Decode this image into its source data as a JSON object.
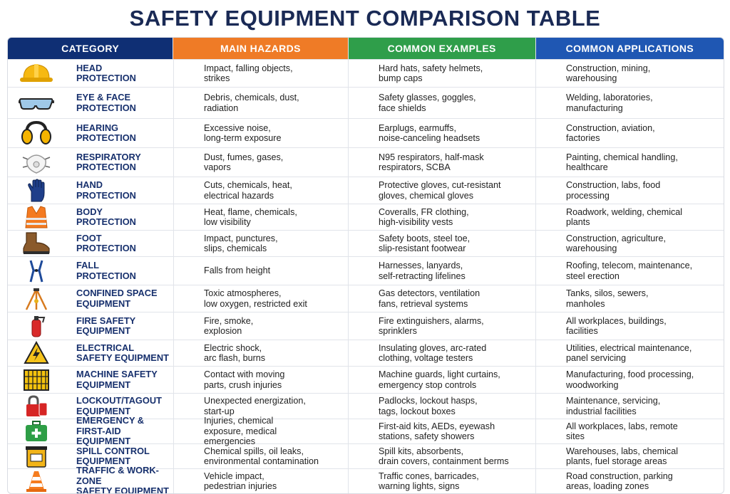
{
  "title": "SAFETY EQUIPMENT COMPARISON TABLE",
  "headers": {
    "category": "CATEGORY",
    "hazards": "MAIN HAZARDS",
    "examples": "COMMON EXAMPLES",
    "applications": "COMMON APPLICATIONS"
  },
  "header_colors": [
    "#0f2f74",
    "#ef7b26",
    "#2f9e4a",
    "#1f57b3"
  ],
  "rows": [
    {
      "icon": "hard-hat-icon",
      "category": "HEAD\nPROTECTION",
      "hazards": "Impact, falling objects,\nstrikes",
      "examples": "Hard hats, safety helmets,\nbump caps",
      "applications": "Construction, mining,\nwarehousing"
    },
    {
      "icon": "safety-goggles-icon",
      "category": "EYE & FACE\nPROTECTION",
      "hazards": "Debris, chemicals, dust,\nradiation",
      "examples": "Safety glasses, goggles,\nface shields",
      "applications": "Welding, laboratories,\nmanufacturing"
    },
    {
      "icon": "earmuffs-icon",
      "category": "HEARING\nPROTECTION",
      "hazards": "Excessive noise,\nlong-term exposure",
      "examples": "Earplugs, earmuffs,\nnoise-canceling headsets",
      "applications": "Construction, aviation,\nfactories"
    },
    {
      "icon": "respirator-mask-icon",
      "category": "RESPIRATORY\nPROTECTION",
      "hazards": "Dust, fumes, gases,\nvapors",
      "examples": "N95 respirators, half-mask\nrespirators, SCBA",
      "applications": "Painting, chemical handling,\nhealthcare"
    },
    {
      "icon": "glove-icon",
      "category": "HAND\nPROTECTION",
      "hazards": "Cuts, chemicals, heat,\nelectrical hazards",
      "examples": "Protective gloves, cut-resistant\ngloves, chemical gloves",
      "applications": "Construction, labs, food\nprocessing"
    },
    {
      "icon": "safety-vest-icon",
      "category": "BODY\nPROTECTION",
      "hazards": "Heat, flame, chemicals,\nlow visibility",
      "examples": "Coveralls, FR clothing,\nhigh-visibility vests",
      "applications": "Roadwork, welding, chemical\nplants"
    },
    {
      "icon": "safety-boot-icon",
      "category": "FOOT\nPROTECTION",
      "hazards": "Impact, punctures,\nslips, chemicals",
      "examples": "Safety boots, steel toe,\nslip-resistant footwear",
      "applications": "Construction, agriculture,\nwarehousing"
    },
    {
      "icon": "harness-icon",
      "category": "FALL\nPROTECTION",
      "hazards": "Falls from height",
      "examples": "Harnesses, lanyards,\nself-retracting lifelines",
      "applications": "Roofing, telecom, maintenance,\nsteel erection"
    },
    {
      "icon": "tripod-icon",
      "category": "CONFINED SPACE\nEQUIPMENT",
      "hazards": "Toxic atmospheres,\nlow oxygen, restricted exit",
      "examples": "Gas detectors, ventilation\nfans, retrieval systems",
      "applications": "Tanks, silos, sewers,\nmanholes"
    },
    {
      "icon": "fire-extinguisher-icon",
      "category": "FIRE SAFETY\nEQUIPMENT",
      "hazards": "Fire, smoke,\nexplosion",
      "examples": "Fire extinguishers, alarms,\nsprinklers",
      "applications": "All workplaces, buildings,\nfacilities"
    },
    {
      "icon": "electrical-warning-icon",
      "category": "ELECTRICAL\nSAFETY EQUIPMENT",
      "hazards": "Electric shock,\narc flash, burns",
      "examples": "Insulating gloves, arc-rated\nclothing, voltage testers",
      "applications": "Utilities, electrical maintenance,\npanel servicing"
    },
    {
      "icon": "machine-guard-icon",
      "category": "MACHINE SAFETY\nEQUIPMENT",
      "hazards": "Contact with moving\nparts, crush injuries",
      "examples": "Machine guards, light curtains,\nemergency stop controls",
      "applications": "Manufacturing, food processing,\nwoodworking"
    },
    {
      "icon": "padlock-tag-icon",
      "category": "LOCKOUT/TAGOUT\nEQUIPMENT",
      "hazards": "Unexpected energization,\nstart-up",
      "examples": "Padlocks, lockout hasps,\ntags, lockout boxes",
      "applications": "Maintenance, servicing,\nindustrial facilities"
    },
    {
      "icon": "first-aid-kit-icon",
      "category": "EMERGENCY &\nFIRST-AID EQUIPMENT",
      "hazards": "Injuries, chemical\nexposure, medical\nemergencies",
      "examples": "First-aid kits, AEDs, eyewash\nstations, safety showers",
      "applications": "All workplaces, labs, remote\nsites"
    },
    {
      "icon": "spill-kit-icon",
      "category": "SPILL CONTROL\nEQUIPMENT",
      "hazards": "Chemical spills, oil leaks,\nenvironmental contamination",
      "examples": "Spill kits, absorbents,\ndrain covers, containment berms",
      "applications": "Warehouses, labs, chemical\nplants, fuel storage areas"
    },
    {
      "icon": "traffic-cone-icon",
      "category": "TRAFFIC & WORK-ZONE\nSAFETY EQUIPMENT",
      "hazards": "Vehicle impact,\npedestrian injuries",
      "examples": "Traffic cones, barricades,\nwarning lights, signs",
      "applications": "Road construction, parking\nareas, loading zones"
    }
  ]
}
